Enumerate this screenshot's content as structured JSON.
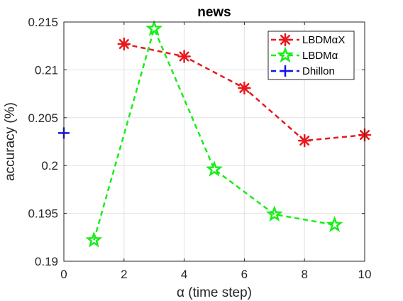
{
  "chart_data": {
    "type": "line",
    "title": "news",
    "xlabel": "α (time step)",
    "ylabel": "accuracy (%)",
    "xlim": [
      0,
      10
    ],
    "ylim": [
      0.19,
      0.215
    ],
    "xticks": [
      0,
      2,
      4,
      6,
      8,
      10
    ],
    "xtick_labels": [
      "0",
      "2",
      "4",
      "6",
      "8",
      "10"
    ],
    "yticks": [
      0.19,
      0.195,
      0.2,
      0.205,
      0.21,
      0.215
    ],
    "ytick_labels": [
      "0.19",
      "0.195",
      "0.2",
      "0.205",
      "0.21",
      "0.215"
    ],
    "grid": true,
    "legend_position": "top-right",
    "series": [
      {
        "name": "LBDMαX",
        "color": "#e8191c",
        "marker": "asterisk",
        "line_style": "dashed",
        "x": [
          2,
          4,
          6,
          8,
          10
        ],
        "y": [
          0.2127,
          0.2114,
          0.2081,
          0.2026,
          0.2032
        ]
      },
      {
        "name": "LBDMα",
        "color": "#18ee18",
        "marker": "star",
        "line_style": "dashed",
        "x": [
          1,
          3,
          5,
          7,
          9
        ],
        "y": [
          0.1922,
          0.2143,
          0.1996,
          0.1949,
          0.1938
        ]
      },
      {
        "name": "Dhillon",
        "color": "#1414e8",
        "marker": "plus",
        "line_style": "dashed",
        "x": [
          0
        ],
        "y": [
          0.2034
        ]
      }
    ]
  }
}
